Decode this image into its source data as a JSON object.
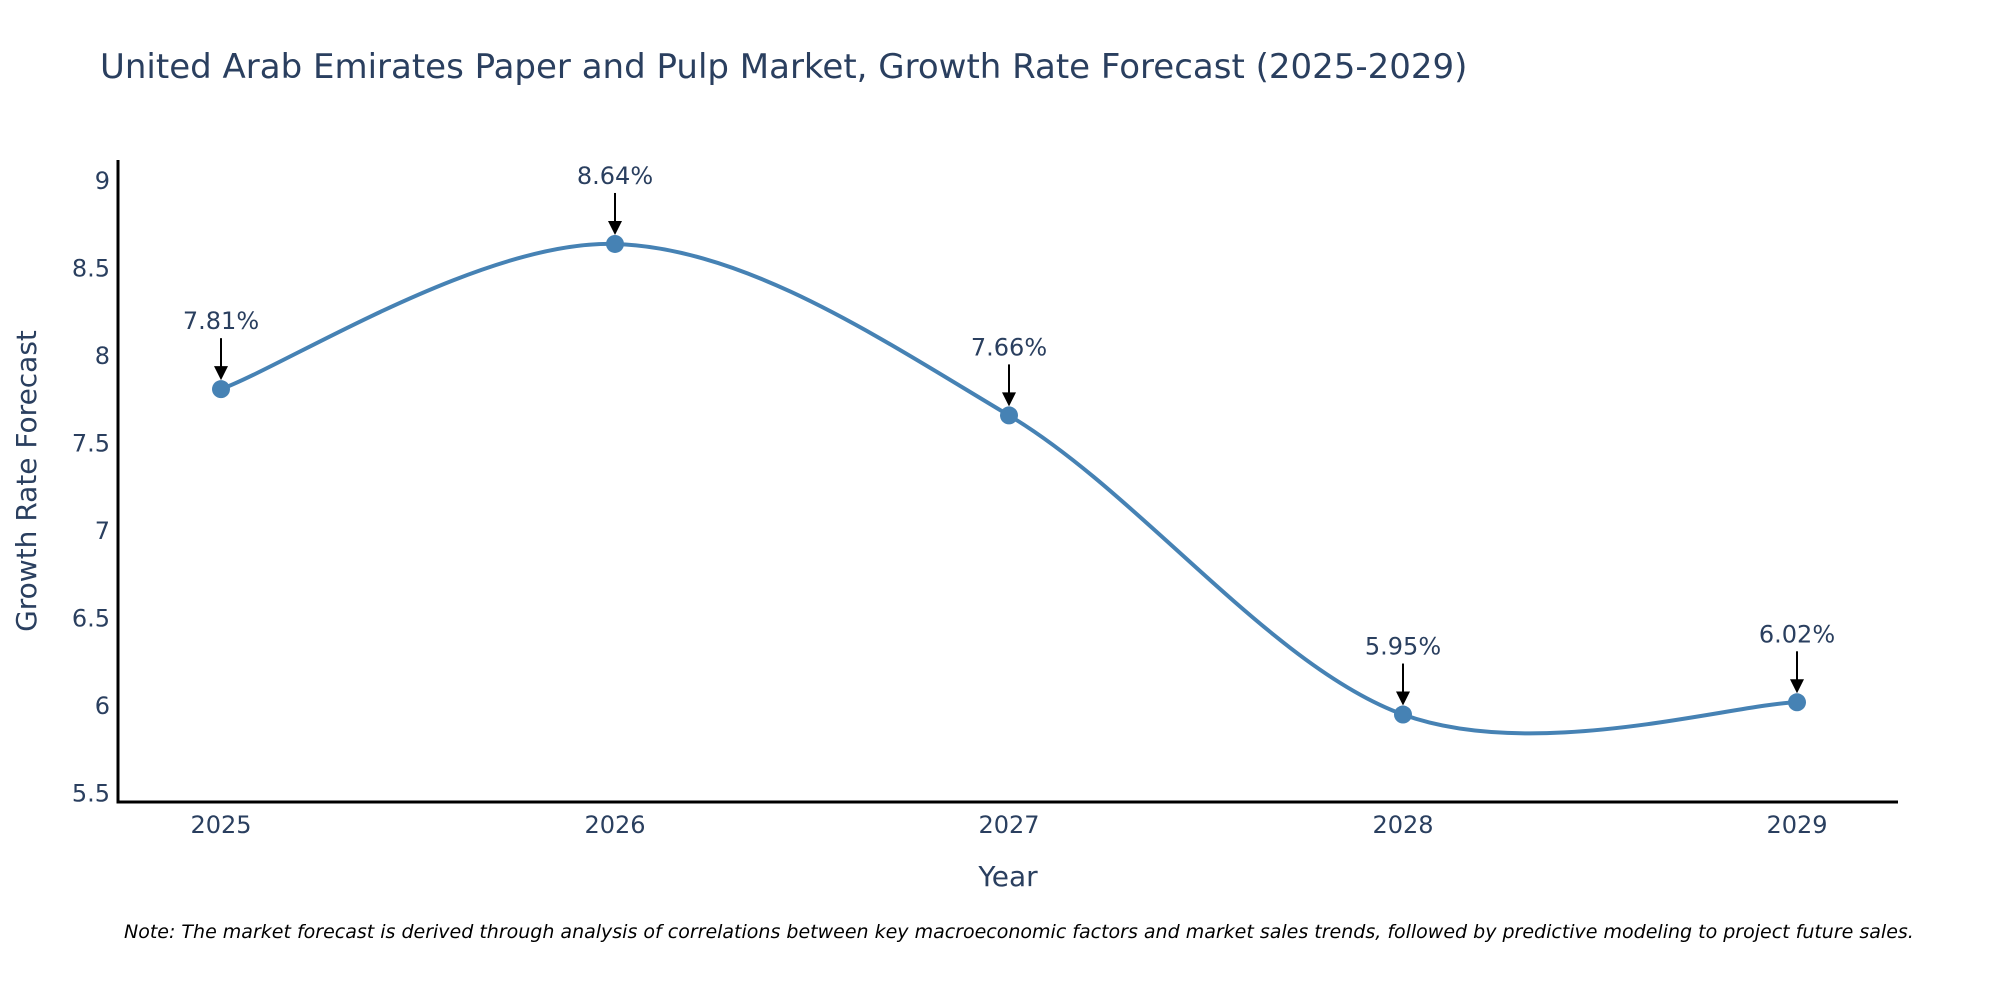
{
  "chart_data": {
    "type": "line",
    "title": "United Arab Emirates Paper and Pulp Market, Growth Rate Forecast (2025-2029)",
    "xlabel": "Year",
    "ylabel": "Growth Rate Forecast",
    "categories": [
      "2025",
      "2026",
      "2027",
      "2028",
      "2029"
    ],
    "series": [
      {
        "name": "Growth Rate Forecast",
        "values": [
          7.81,
          8.64,
          7.66,
          5.95,
          6.02
        ],
        "labels": [
          "7.81%",
          "8.64%",
          "7.66%",
          "5.95%",
          "6.02%"
        ]
      }
    ],
    "ylim": [
      5.45,
      9.12
    ],
    "yticks": [
      5.5,
      6,
      6.5,
      7,
      7.5,
      8,
      8.5,
      9
    ],
    "ytick_labels": [
      "5.5",
      "6",
      "6.5",
      "7",
      "7.5",
      "8",
      "8.5",
      "9"
    ],
    "grid": false,
    "line_shape": "spline",
    "annotations": "arrow above each point with value label",
    "note": "Note: The market forecast is derived through analysis of correlations between key macroeconomic factors and market sales trends, followed by predictive modeling to project future sales."
  },
  "colors": {
    "line": "#4682B4",
    "marker": "#4682B4",
    "text": "#2A3F5F",
    "axis": "#000000",
    "arrow": "#000000"
  }
}
